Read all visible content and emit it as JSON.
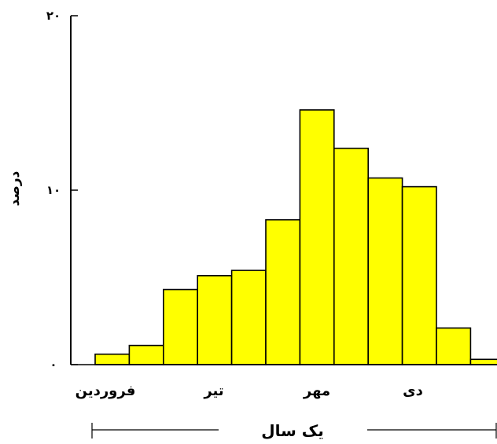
{
  "chart_data": {
    "type": "bar",
    "title": "",
    "xlabel": "یک سال",
    "ylabel": "درصد",
    "ylim": [
      0,
      20
    ],
    "grid": false,
    "y_ticks": [
      {
        "value": 0,
        "label": "۰"
      },
      {
        "value": 10,
        "label": "۱۰"
      },
      {
        "value": 20,
        "label": "۲۰"
      }
    ],
    "x_labels": [
      "فروردین",
      "تیر",
      "مهر",
      "دی"
    ],
    "values": [
      0.6,
      1.1,
      4.3,
      5.1,
      5.4,
      8.3,
      14.6,
      12.4,
      10.7,
      10.2,
      2.1,
      0.3
    ],
    "bar_color": "#ffff00",
    "edge_color": "#000000"
  }
}
